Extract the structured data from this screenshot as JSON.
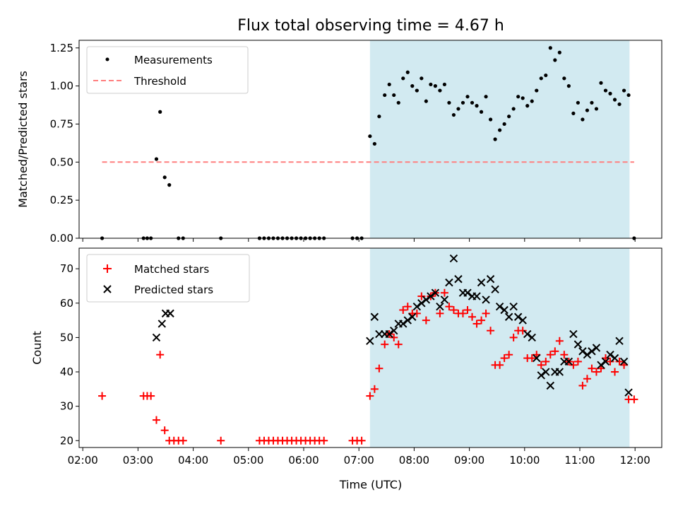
{
  "figure": {
    "title": "Flux total observing time = 4.67 h",
    "xlabel": "Time (UTC)",
    "x_ticks": [
      "02:00",
      "03:00",
      "04:00",
      "05:00",
      "06:00",
      "07:00",
      "08:00",
      "09:00",
      "10:00",
      "11:00",
      "12:00"
    ]
  },
  "chart_data": [
    {
      "type": "scatter",
      "ylabel": "Matched/Predicted stars",
      "ylim": [
        0,
        1.3
      ],
      "y_ticks": [
        "0.00",
        "0.25",
        "0.50",
        "0.75",
        "1.00",
        "1.25"
      ],
      "xlim": [
        "01:56",
        "12:29"
      ],
      "shaded_interval": {
        "from": "07:12",
        "to": "11:54",
        "color": "#add8e6"
      },
      "legend": {
        "placement": "upper-left",
        "entries": [
          "Measurements",
          "Threshold"
        ]
      },
      "threshold": {
        "name": "Threshold",
        "y": 0.5,
        "x_from": "02:21",
        "x_to": "11:59",
        "color": "#ff7f7f",
        "style": "dashed"
      },
      "series": [
        {
          "name": "Measurements",
          "marker": "dot",
          "color": "#000000",
          "points": [
            [
              "02:21",
              0
            ],
            [
              "03:06",
              0
            ],
            [
              "03:10",
              0
            ],
            [
              "03:14",
              0
            ],
            [
              "03:20",
              0.52
            ],
            [
              "03:24",
              0.83
            ],
            [
              "03:29",
              0.4
            ],
            [
              "03:34",
              0.35
            ],
            [
              "03:44",
              0
            ],
            [
              "03:49",
              0
            ],
            [
              "04:30",
              0
            ],
            [
              "05:12",
              0
            ],
            [
              "05:17",
              0
            ],
            [
              "05:22",
              0
            ],
            [
              "05:27",
              0
            ],
            [
              "05:32",
              0
            ],
            [
              "05:37",
              0
            ],
            [
              "05:42",
              0
            ],
            [
              "05:47",
              0
            ],
            [
              "05:52",
              0
            ],
            [
              "05:57",
              0
            ],
            [
              "06:02",
              0
            ],
            [
              "06:07",
              0
            ],
            [
              "06:12",
              0
            ],
            [
              "06:17",
              0
            ],
            [
              "06:22",
              0
            ],
            [
              "06:53",
              0
            ],
            [
              "06:58",
              0
            ],
            [
              "07:03",
              0
            ],
            [
              "07:12",
              0.67
            ],
            [
              "07:17",
              0.62
            ],
            [
              "07:22",
              0.8
            ],
            [
              "07:28",
              0.94
            ],
            [
              "07:33",
              1.01
            ],
            [
              "07:38",
              0.94
            ],
            [
              "07:43",
              0.89
            ],
            [
              "07:48",
              1.05
            ],
            [
              "07:53",
              1.09
            ],
            [
              "07:58",
              1.0
            ],
            [
              "08:03",
              0.97
            ],
            [
              "08:08",
              1.05
            ],
            [
              "08:13",
              0.9
            ],
            [
              "08:18",
              1.01
            ],
            [
              "08:23",
              1.0
            ],
            [
              "08:28",
              0.97
            ],
            [
              "08:33",
              1.01
            ],
            [
              "08:38",
              0.89
            ],
            [
              "08:43",
              0.81
            ],
            [
              "08:48",
              0.85
            ],
            [
              "08:53",
              0.89
            ],
            [
              "08:58",
              0.93
            ],
            [
              "09:03",
              0.89
            ],
            [
              "09:08",
              0.87
            ],
            [
              "09:13",
              0.83
            ],
            [
              "09:18",
              0.93
            ],
            [
              "09:23",
              0.78
            ],
            [
              "09:28",
              0.65
            ],
            [
              "09:33",
              0.71
            ],
            [
              "09:38",
              0.75
            ],
            [
              "09:43",
              0.8
            ],
            [
              "09:48",
              0.85
            ],
            [
              "09:53",
              0.93
            ],
            [
              "09:58",
              0.92
            ],
            [
              "10:03",
              0.87
            ],
            [
              "10:08",
              0.9
            ],
            [
              "10:13",
              0.97
            ],
            [
              "10:18",
              1.05
            ],
            [
              "10:23",
              1.07
            ],
            [
              "10:28",
              1.25
            ],
            [
              "10:33",
              1.17
            ],
            [
              "10:38",
              1.22
            ],
            [
              "10:43",
              1.05
            ],
            [
              "10:48",
              1.0
            ],
            [
              "10:53",
              0.82
            ],
            [
              "10:58",
              0.89
            ],
            [
              "11:03",
              0.78
            ],
            [
              "11:08",
              0.84
            ],
            [
              "11:13",
              0.89
            ],
            [
              "11:18",
              0.85
            ],
            [
              "11:23",
              1.02
            ],
            [
              "11:28",
              0.97
            ],
            [
              "11:33",
              0.95
            ],
            [
              "11:38",
              0.91
            ],
            [
              "11:43",
              0.88
            ],
            [
              "11:48",
              0.97
            ],
            [
              "11:53",
              0.94
            ],
            [
              "11:59",
              0
            ]
          ]
        }
      ]
    },
    {
      "type": "scatter",
      "ylabel": "Count",
      "ylim": [
        18,
        76
      ],
      "y_ticks": [
        "20",
        "30",
        "40",
        "50",
        "60",
        "70"
      ],
      "xlim": [
        "01:56",
        "12:29"
      ],
      "shaded_interval": {
        "from": "07:12",
        "to": "11:54",
        "color": "#add8e6"
      },
      "legend": {
        "placement": "upper-left",
        "entries": [
          "Matched stars",
          "Predicted stars"
        ]
      },
      "series": [
        {
          "name": "Matched stars",
          "marker": "plus",
          "color": "#ff0000",
          "points": [
            [
              "02:21",
              33
            ],
            [
              "03:06",
              33
            ],
            [
              "03:10",
              33
            ],
            [
              "03:14",
              33
            ],
            [
              "03:20",
              26
            ],
            [
              "03:24",
              45
            ],
            [
              "03:29",
              23
            ],
            [
              "03:34",
              20
            ],
            [
              "03:39",
              20
            ],
            [
              "03:44",
              20
            ],
            [
              "03:49",
              20
            ],
            [
              "04:30",
              20
            ],
            [
              "05:12",
              20
            ],
            [
              "05:17",
              20
            ],
            [
              "05:22",
              20
            ],
            [
              "05:27",
              20
            ],
            [
              "05:32",
              20
            ],
            [
              "05:37",
              20
            ],
            [
              "05:42",
              20
            ],
            [
              "05:47",
              20
            ],
            [
              "05:52",
              20
            ],
            [
              "05:57",
              20
            ],
            [
              "06:02",
              20
            ],
            [
              "06:07",
              20
            ],
            [
              "06:12",
              20
            ],
            [
              "06:17",
              20
            ],
            [
              "06:22",
              20
            ],
            [
              "06:53",
              20
            ],
            [
              "06:58",
              20
            ],
            [
              "07:03",
              20
            ],
            [
              "07:12",
              33
            ],
            [
              "07:17",
              35
            ],
            [
              "07:22",
              41
            ],
            [
              "07:28",
              48
            ],
            [
              "07:33",
              51
            ],
            [
              "07:38",
              50
            ],
            [
              "07:43",
              48
            ],
            [
              "07:48",
              58
            ],
            [
              "07:53",
              59
            ],
            [
              "07:58",
              57
            ],
            [
              "08:03",
              57
            ],
            [
              "08:08",
              62
            ],
            [
              "08:13",
              55
            ],
            [
              "08:18",
              62
            ],
            [
              "08:23",
              63
            ],
            [
              "08:28",
              57
            ],
            [
              "08:33",
              63
            ],
            [
              "08:38",
              59
            ],
            [
              "08:43",
              58
            ],
            [
              "08:48",
              57
            ],
            [
              "08:53",
              57
            ],
            [
              "08:58",
              58
            ],
            [
              "09:03",
              56
            ],
            [
              "09:08",
              54
            ],
            [
              "09:13",
              55
            ],
            [
              "09:18",
              57
            ],
            [
              "09:23",
              52
            ],
            [
              "09:28",
              42
            ],
            [
              "09:33",
              42
            ],
            [
              "09:38",
              44
            ],
            [
              "09:43",
              45
            ],
            [
              "09:48",
              50
            ],
            [
              "09:53",
              52
            ],
            [
              "09:58",
              52
            ],
            [
              "10:03",
              44
            ],
            [
              "10:08",
              44
            ],
            [
              "10:13",
              45
            ],
            [
              "10:18",
              42
            ],
            [
              "10:23",
              43
            ],
            [
              "10:28",
              45
            ],
            [
              "10:33",
              46
            ],
            [
              "10:38",
              49
            ],
            [
              "10:43",
              45
            ],
            [
              "10:48",
              43
            ],
            [
              "10:53",
              42
            ],
            [
              "10:58",
              43
            ],
            [
              "11:03",
              36
            ],
            [
              "11:08",
              38
            ],
            [
              "11:13",
              41
            ],
            [
              "11:18",
              40
            ],
            [
              "11:23",
              41
            ],
            [
              "11:28",
              44
            ],
            [
              "11:33",
              43
            ],
            [
              "11:38",
              40
            ],
            [
              "11:43",
              43
            ],
            [
              "11:48",
              42
            ],
            [
              "11:53",
              32
            ],
            [
              "11:59",
              32
            ]
          ]
        },
        {
          "name": "Predicted stars",
          "marker": "x",
          "color": "#000000",
          "points": [
            [
              "03:20",
              50
            ],
            [
              "03:26",
              54
            ],
            [
              "03:30",
              57
            ],
            [
              "03:35",
              57
            ],
            [
              "07:12",
              49
            ],
            [
              "07:17",
              56
            ],
            [
              "07:22",
              51
            ],
            [
              "07:28",
              51
            ],
            [
              "07:33",
              51
            ],
            [
              "07:38",
              52
            ],
            [
              "07:43",
              54
            ],
            [
              "07:48",
              54
            ],
            [
              "07:53",
              55
            ],
            [
              "07:58",
              56
            ],
            [
              "08:03",
              59
            ],
            [
              "08:08",
              60
            ],
            [
              "08:13",
              61
            ],
            [
              "08:18",
              62
            ],
            [
              "08:23",
              63
            ],
            [
              "08:28",
              59
            ],
            [
              "08:33",
              61
            ],
            [
              "08:38",
              66
            ],
            [
              "08:43",
              73
            ],
            [
              "08:48",
              67
            ],
            [
              "08:53",
              63
            ],
            [
              "08:58",
              63
            ],
            [
              "09:03",
              62
            ],
            [
              "09:08",
              62
            ],
            [
              "09:13",
              66
            ],
            [
              "09:18",
              61
            ],
            [
              "09:23",
              67
            ],
            [
              "09:28",
              64
            ],
            [
              "09:33",
              59
            ],
            [
              "09:38",
              58
            ],
            [
              "09:43",
              56
            ],
            [
              "09:48",
              59
            ],
            [
              "09:53",
              56
            ],
            [
              "09:58",
              55
            ],
            [
              "10:03",
              51
            ],
            [
              "10:08",
              50
            ],
            [
              "10:13",
              44
            ],
            [
              "10:18",
              39
            ],
            [
              "10:23",
              40
            ],
            [
              "10:28",
              36
            ],
            [
              "10:33",
              40
            ],
            [
              "10:38",
              40
            ],
            [
              "10:43",
              43
            ],
            [
              "10:48",
              43
            ],
            [
              "10:53",
              51
            ],
            [
              "10:58",
              48
            ],
            [
              "11:03",
              46
            ],
            [
              "11:08",
              45
            ],
            [
              "11:13",
              46
            ],
            [
              "11:18",
              47
            ],
            [
              "11:23",
              42
            ],
            [
              "11:28",
              43
            ],
            [
              "11:33",
              45
            ],
            [
              "11:38",
              44
            ],
            [
              "11:43",
              49
            ],
            [
              "11:48",
              43
            ],
            [
              "11:53",
              34
            ]
          ]
        }
      ]
    }
  ]
}
